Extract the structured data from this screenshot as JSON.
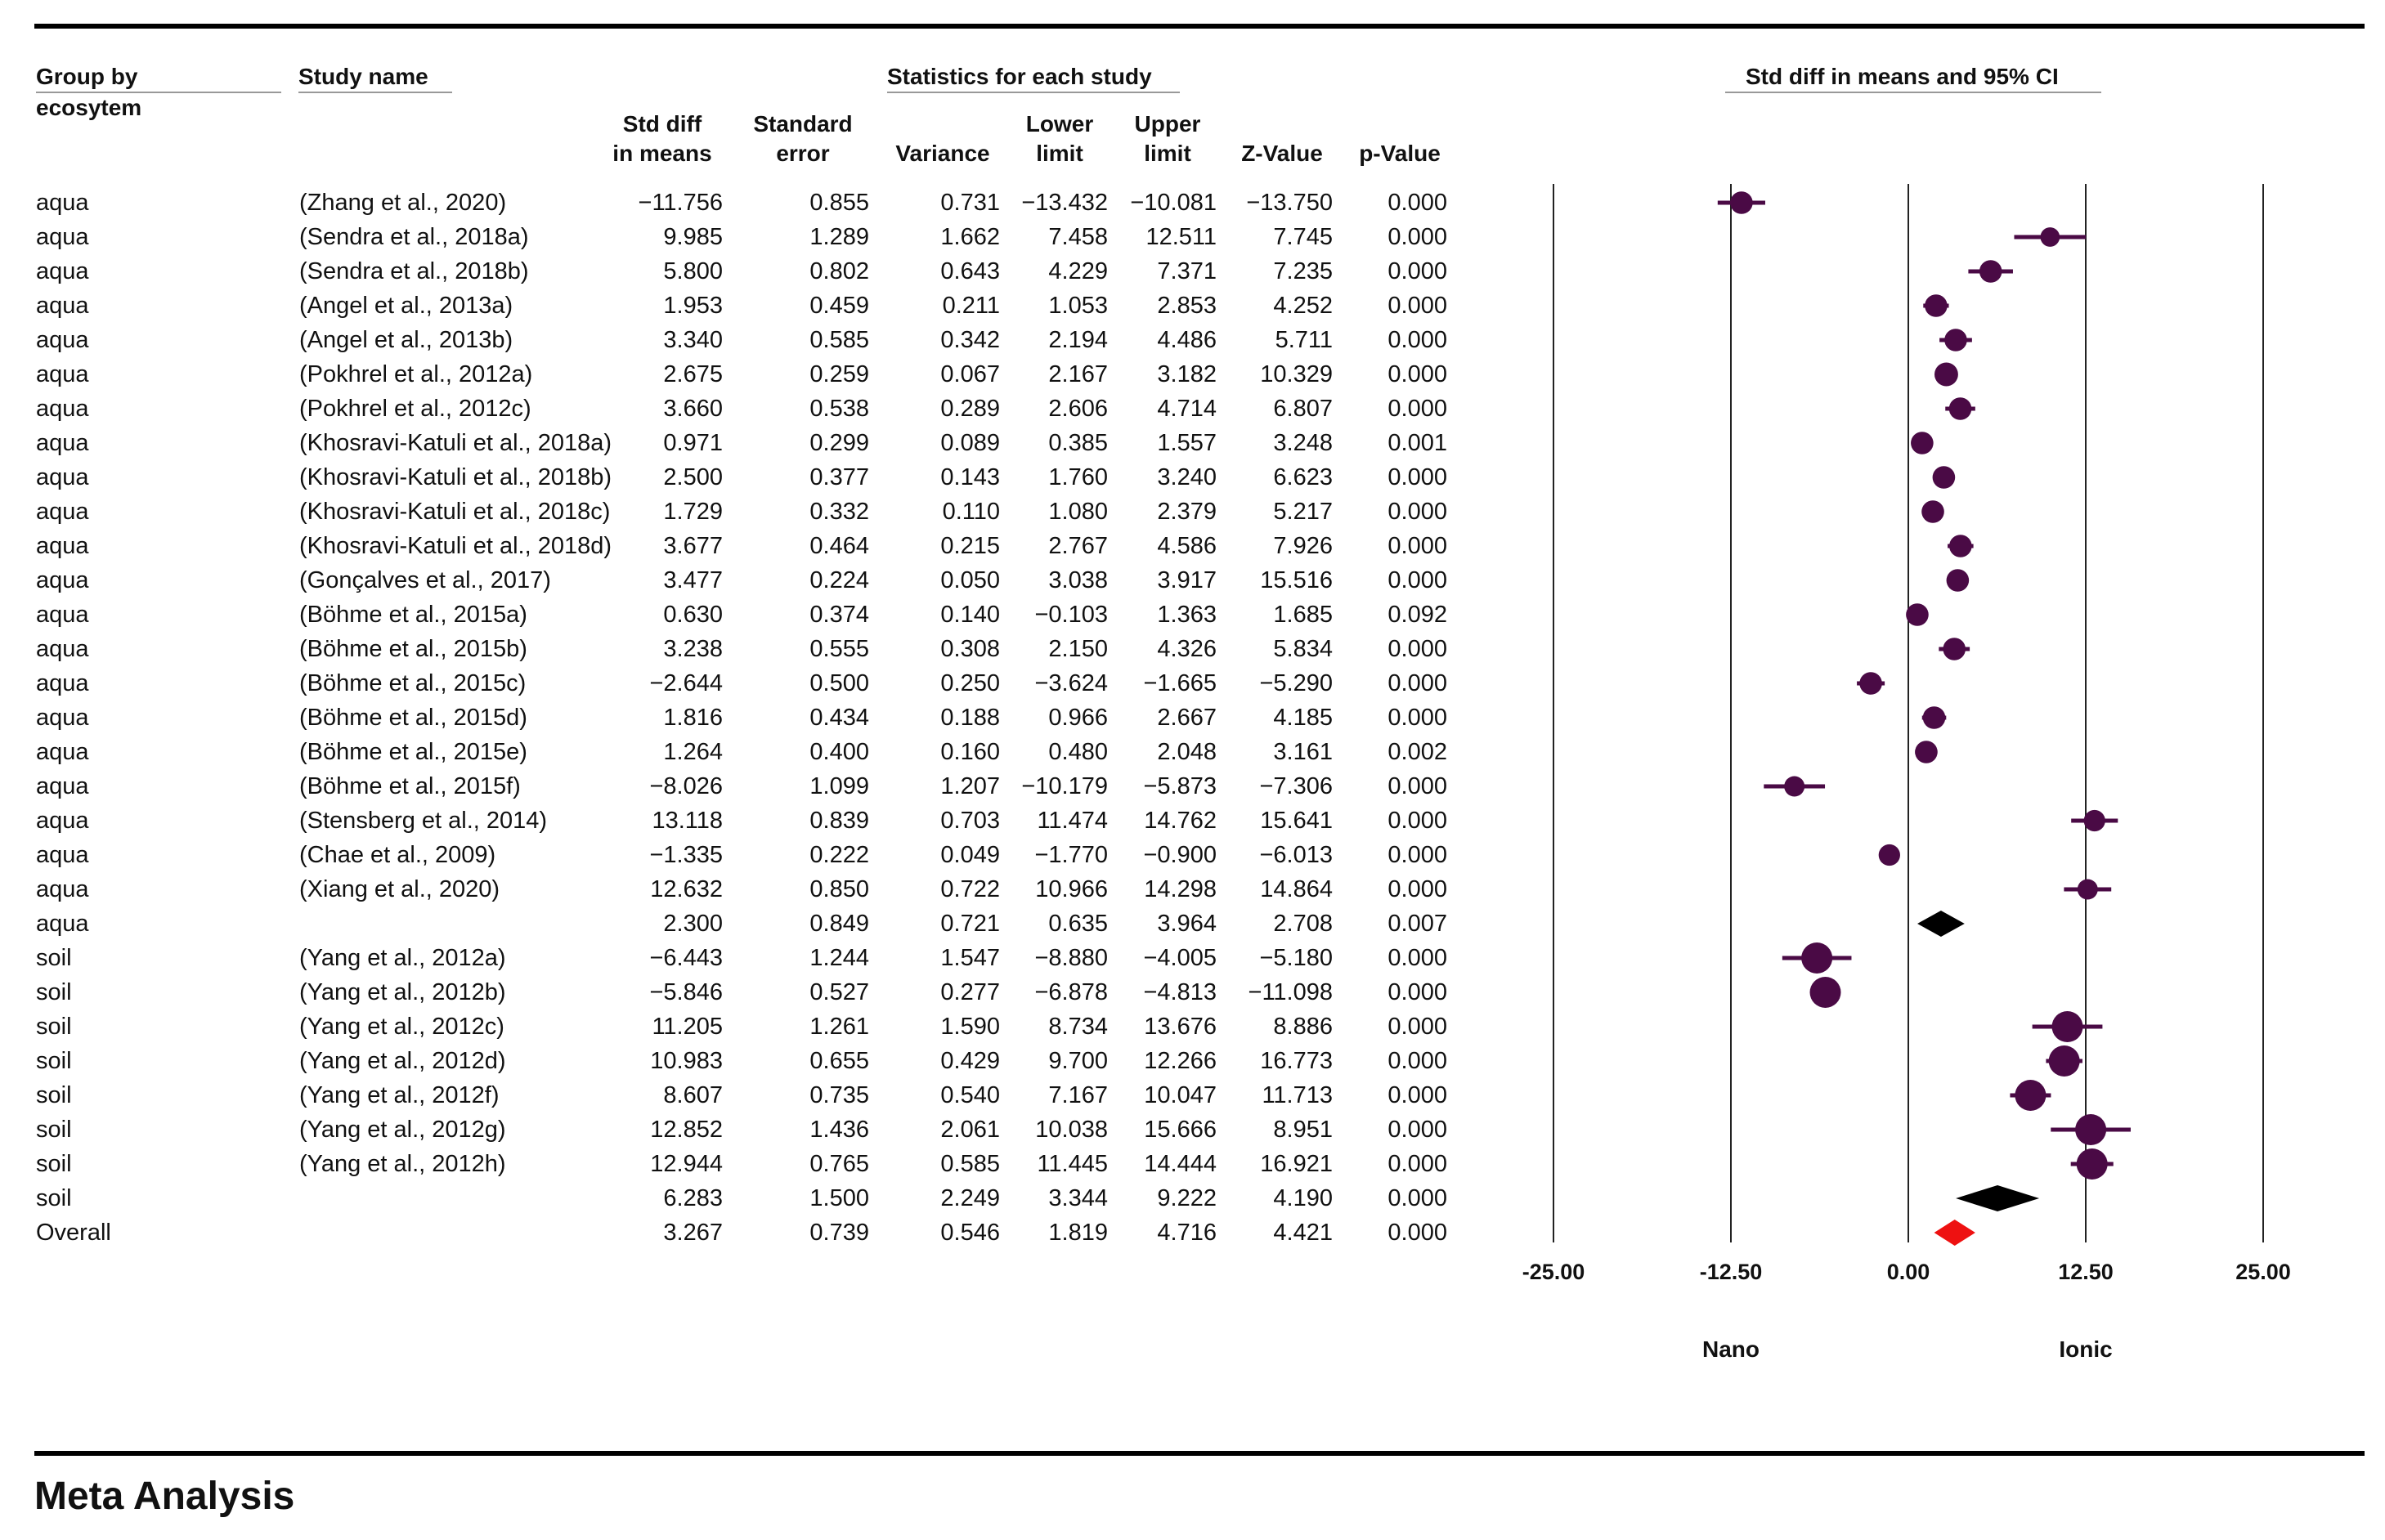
{
  "chart_data": {
    "type": "forest",
    "headers": {
      "group": "Group by",
      "group2": "ecosytem",
      "study": "Study name",
      "stats_group": "Statistics for each study",
      "ci_group": "Std diff in means and 95% CI"
    },
    "columns": [
      {
        "key": "std_diff",
        "line1": "Std diff",
        "line2": "in means"
      },
      {
        "key": "se",
        "line1": "Standard",
        "line2": "error"
      },
      {
        "key": "var",
        "line1": "",
        "line2": "Variance"
      },
      {
        "key": "lower",
        "line1": "Lower",
        "line2": "limit"
      },
      {
        "key": "upper",
        "line1": "Upper",
        "line2": "limit"
      },
      {
        "key": "z",
        "line1": "",
        "line2": "Z-Value"
      },
      {
        "key": "p",
        "line1": "",
        "line2": "p-Value"
      }
    ],
    "axis": {
      "ticks": [
        "-25.00",
        "-12.50",
        "0.00",
        "12.50",
        "25.00"
      ],
      "tick_values": [
        -25,
        -12.5,
        0,
        12.5,
        25
      ],
      "range": [
        -25,
        25
      ],
      "left_label": "Nano",
      "right_label": "Ionic"
    },
    "colors": {
      "study": "#4a0a45",
      "subgroup": "#000000",
      "overall": "#ee1111"
    },
    "rows": [
      {
        "group": "aqua",
        "study": "(Zhang et al., 2020)",
        "kind": "study",
        "weight": 0.6,
        "std_diff": "−11.756",
        "se": "0.855",
        "var": "0.731",
        "lower": "−13.432",
        "upper": "−10.081",
        "z": "−13.750",
        "p": "0.000"
      },
      {
        "group": "aqua",
        "study": "(Sendra et al., 2018a)",
        "kind": "study",
        "weight": 0.45,
        "std_diff": "9.985",
        "se": "1.289",
        "var": "1.662",
        "lower": "7.458",
        "upper": "12.511",
        "z": "7.745",
        "p": "0.000"
      },
      {
        "group": "aqua",
        "study": "(Sendra et al., 2018b)",
        "kind": "study",
        "weight": 0.6,
        "std_diff": "5.800",
        "se": "0.802",
        "var": "0.643",
        "lower": "4.229",
        "upper": "7.371",
        "z": "7.235",
        "p": "0.000"
      },
      {
        "group": "aqua",
        "study": "(Angel et al., 2013a)",
        "kind": "study",
        "weight": 0.6,
        "std_diff": "1.953",
        "se": "0.459",
        "var": "0.211",
        "lower": "1.053",
        "upper": "2.853",
        "z": "4.252",
        "p": "0.000"
      },
      {
        "group": "aqua",
        "study": "(Angel et al., 2013b)",
        "kind": "study",
        "weight": 0.6,
        "std_diff": "3.340",
        "se": "0.585",
        "var": "0.342",
        "lower": "2.194",
        "upper": "4.486",
        "z": "5.711",
        "p": "0.000"
      },
      {
        "group": "aqua",
        "study": "(Pokhrel et al., 2012a)",
        "kind": "study",
        "weight": 0.65,
        "std_diff": "2.675",
        "se": "0.259",
        "var": "0.067",
        "lower": "2.167",
        "upper": "3.182",
        "z": "10.329",
        "p": "0.000"
      },
      {
        "group": "aqua",
        "study": "(Pokhrel et al., 2012c)",
        "kind": "study",
        "weight": 0.6,
        "std_diff": "3.660",
        "se": "0.538",
        "var": "0.289",
        "lower": "2.606",
        "upper": "4.714",
        "z": "6.807",
        "p": "0.000"
      },
      {
        "group": "aqua",
        "study": "(Khosravi-Katuli et al., 2018a)",
        "kind": "study",
        "weight": 0.6,
        "std_diff": "0.971",
        "se": "0.299",
        "var": "0.089",
        "lower": "0.385",
        "upper": "1.557",
        "z": "3.248",
        "p": "0.001"
      },
      {
        "group": "aqua",
        "study": "(Khosravi-Katuli et al., 2018b)",
        "kind": "study",
        "weight": 0.6,
        "std_diff": "2.500",
        "se": "0.377",
        "var": "0.143",
        "lower": "1.760",
        "upper": "3.240",
        "z": "6.623",
        "p": "0.000"
      },
      {
        "group": "aqua",
        "study": "(Khosravi-Katuli et al., 2018c)",
        "kind": "study",
        "weight": 0.6,
        "std_diff": "1.729",
        "se": "0.332",
        "var": "0.110",
        "lower": "1.080",
        "upper": "2.379",
        "z": "5.217",
        "p": "0.000"
      },
      {
        "group": "aqua",
        "study": "(Khosravi-Katuli et al., 2018d)",
        "kind": "study",
        "weight": 0.6,
        "std_diff": "3.677",
        "se": "0.464",
        "var": "0.215",
        "lower": "2.767",
        "upper": "4.586",
        "z": "7.926",
        "p": "0.000"
      },
      {
        "group": "aqua",
        "study": "(Gonçalves et al., 2017)",
        "kind": "study",
        "weight": 0.6,
        "std_diff": "3.477",
        "se": "0.224",
        "var": "0.050",
        "lower": "3.038",
        "upper": "3.917",
        "z": "15.516",
        "p": "0.000"
      },
      {
        "group": "aqua",
        "study": "(Böhme et al., 2015a)",
        "kind": "study",
        "weight": 0.6,
        "std_diff": "0.630",
        "se": "0.374",
        "var": "0.140",
        "lower": "−0.103",
        "upper": "1.363",
        "z": "1.685",
        "p": "0.092"
      },
      {
        "group": "aqua",
        "study": "(Böhme et al., 2015b)",
        "kind": "study",
        "weight": 0.6,
        "std_diff": "3.238",
        "se": "0.555",
        "var": "0.308",
        "lower": "2.150",
        "upper": "4.326",
        "z": "5.834",
        "p": "0.000"
      },
      {
        "group": "aqua",
        "study": "(Böhme et al., 2015c)",
        "kind": "study",
        "weight": 0.6,
        "std_diff": "−2.644",
        "se": "0.500",
        "var": "0.250",
        "lower": "−3.624",
        "upper": "−1.665",
        "z": "−5.290",
        "p": "0.000"
      },
      {
        "group": "aqua",
        "study": "(Böhme et al., 2015d)",
        "kind": "study",
        "weight": 0.6,
        "std_diff": "1.816",
        "se": "0.434",
        "var": "0.188",
        "lower": "0.966",
        "upper": "2.667",
        "z": "4.185",
        "p": "0.000"
      },
      {
        "group": "aqua",
        "study": "(Böhme et al., 2015e)",
        "kind": "study",
        "weight": 0.6,
        "std_diff": "1.264",
        "se": "0.400",
        "var": "0.160",
        "lower": "0.480",
        "upper": "2.048",
        "z": "3.161",
        "p": "0.002"
      },
      {
        "group": "aqua",
        "study": "(Böhme et al., 2015f)",
        "kind": "study",
        "weight": 0.5,
        "std_diff": "−8.026",
        "se": "1.099",
        "var": "1.207",
        "lower": "−10.179",
        "upper": "−5.873",
        "z": "−7.306",
        "p": "0.000"
      },
      {
        "group": "aqua",
        "study": "(Stensberg et al., 2014)",
        "kind": "study",
        "weight": 0.55,
        "std_diff": "13.118",
        "se": "0.839",
        "var": "0.703",
        "lower": "11.474",
        "upper": "14.762",
        "z": "15.641",
        "p": "0.000"
      },
      {
        "group": "aqua",
        "study": "(Chae et al., 2009)",
        "kind": "study",
        "weight": 0.55,
        "std_diff": "−1.335",
        "se": "0.222",
        "var": "0.049",
        "lower": "−1.770",
        "upper": "−0.900",
        "z": "−6.013",
        "p": "0.000"
      },
      {
        "group": "aqua",
        "study": "(Xiang et al., 2020)",
        "kind": "study",
        "weight": 0.5,
        "std_diff": "12.632",
        "se": "0.850",
        "var": "0.722",
        "lower": "10.966",
        "upper": "14.298",
        "z": "14.864",
        "p": "0.000"
      },
      {
        "group": "aqua",
        "study": "",
        "kind": "subgroup",
        "weight": 0,
        "std_diff": "2.300",
        "se": "0.849",
        "var": "0.721",
        "lower": "0.635",
        "upper": "3.964",
        "z": "2.708",
        "p": "0.007"
      },
      {
        "group": "soil",
        "study": "(Yang et al., 2012a)",
        "kind": "study",
        "weight": 1.0,
        "std_diff": "−6.443",
        "se": "1.244",
        "var": "1.547",
        "lower": "−8.880",
        "upper": "−4.005",
        "z": "−5.180",
        "p": "0.000"
      },
      {
        "group": "soil",
        "study": "(Yang et al., 2012b)",
        "kind": "study",
        "weight": 1.0,
        "std_diff": "−5.846",
        "se": "0.527",
        "var": "0.277",
        "lower": "−6.878",
        "upper": "−4.813",
        "z": "−11.098",
        "p": "0.000"
      },
      {
        "group": "soil",
        "study": "(Yang et al., 2012c)",
        "kind": "study",
        "weight": 1.0,
        "std_diff": "11.205",
        "se": "1.261",
        "var": "1.590",
        "lower": "8.734",
        "upper": "13.676",
        "z": "8.886",
        "p": "0.000"
      },
      {
        "group": "soil",
        "study": "(Yang et al., 2012d)",
        "kind": "study",
        "weight": 1.0,
        "std_diff": "10.983",
        "se": "0.655",
        "var": "0.429",
        "lower": "9.700",
        "upper": "12.266",
        "z": "16.773",
        "p": "0.000"
      },
      {
        "group": "soil",
        "study": "(Yang et al., 2012f)",
        "kind": "study",
        "weight": 1.0,
        "std_diff": "8.607",
        "se": "0.735",
        "var": "0.540",
        "lower": "7.167",
        "upper": "10.047",
        "z": "11.713",
        "p": "0.000"
      },
      {
        "group": "soil",
        "study": "(Yang et al., 2012g)",
        "kind": "study",
        "weight": 1.0,
        "std_diff": "12.852",
        "se": "1.436",
        "var": "2.061",
        "lower": "10.038",
        "upper": "15.666",
        "z": "8.951",
        "p": "0.000"
      },
      {
        "group": "soil",
        "study": "(Yang et al., 2012h)",
        "kind": "study",
        "weight": 1.0,
        "std_diff": "12.944",
        "se": "0.765",
        "var": "0.585",
        "lower": "11.445",
        "upper": "14.444",
        "z": "16.921",
        "p": "0.000"
      },
      {
        "group": "soil",
        "study": "",
        "kind": "subgroup",
        "weight": 0,
        "std_diff": "6.283",
        "se": "1.500",
        "var": "2.249",
        "lower": "3.344",
        "upper": "9.222",
        "z": "4.190",
        "p": "0.000"
      },
      {
        "group": "Overall",
        "study": "",
        "kind": "overall",
        "weight": 0,
        "std_diff": "3.267",
        "se": "0.739",
        "var": "0.546",
        "lower": "1.819",
        "upper": "4.716",
        "z": "4.421",
        "p": "0.000"
      }
    ]
  },
  "footer": {
    "title": "Meta Analysis"
  }
}
